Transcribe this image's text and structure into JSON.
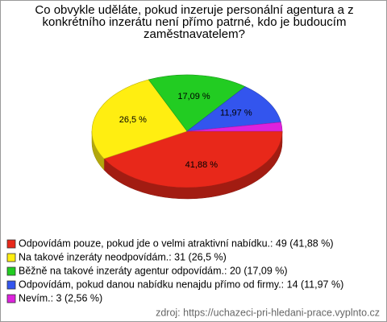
{
  "chart_data": {
    "type": "pie3d",
    "title": "Co obvykle uděláte, pokud inzeruje personální agentura a z konkrétního inzerátu není přímo patrné, kdo je budoucím zaměstnavatelem?",
    "categories": [
      "Odpovídám pouze, pokud jde o velmi atraktivní nabídku.: 49 (41,88 %)",
      "Na takové inzeráty neodpovídám.: 31 (26,5 %)",
      "Běžně na takové inzeráty agentur odpovídám.: 20 (17,09 %)",
      "Odpovídám, pokud danou nabídku nenajdu přímo od firmy.: 14 (11,97 %)",
      "Nevím.: 3 (2,56 %)"
    ],
    "values": [
      41.88,
      26.5,
      17.09,
      11.97,
      2.56
    ],
    "value_labels": [
      "41,88 %",
      "26,5 %",
      "17,09 %",
      "11,97 %",
      null
    ],
    "colors": [
      "#e8281a",
      "#ffee11",
      "#22cc22",
      "#3355ee",
      "#dd22dd"
    ],
    "source": "zdroj: https://uchazeci-pri-hledani-prace.vyplnto.cz"
  }
}
